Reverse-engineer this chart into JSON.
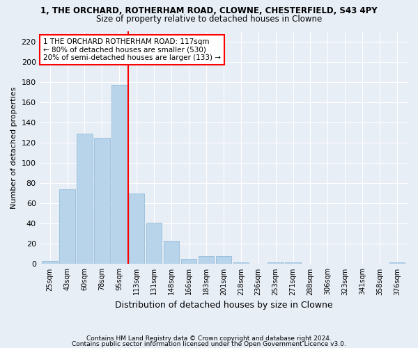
{
  "title_line1": "1, THE ORCHARD, ROTHERHAM ROAD, CLOWNE, CHESTERFIELD, S43 4PY",
  "title_line2": "Size of property relative to detached houses in Clowne",
  "xlabel": "Distribution of detached houses by size in Clowne",
  "ylabel": "Number of detached properties",
  "categories": [
    "25sqm",
    "43sqm",
    "60sqm",
    "78sqm",
    "95sqm",
    "113sqm",
    "131sqm",
    "148sqm",
    "166sqm",
    "183sqm",
    "201sqm",
    "218sqm",
    "236sqm",
    "253sqm",
    "271sqm",
    "288sqm",
    "306sqm",
    "323sqm",
    "341sqm",
    "358sqm",
    "376sqm"
  ],
  "values": [
    3,
    74,
    129,
    125,
    177,
    70,
    41,
    23,
    5,
    8,
    8,
    2,
    0,
    2,
    2,
    0,
    0,
    0,
    0,
    0,
    2
  ],
  "bar_color": "#b8d4ea",
  "bar_edgecolor": "#8ab4d4",
  "vline_x_index": 4.5,
  "annotation_text": "1 THE ORCHARD ROTHERHAM ROAD: 117sqm\n← 80% of detached houses are smaller (530)\n20% of semi-detached houses are larger (133) →",
  "annotation_box_color": "white",
  "annotation_box_edgecolor": "red",
  "vline_color": "red",
  "ylim": [
    0,
    230
  ],
  "yticks": [
    0,
    20,
    40,
    60,
    80,
    100,
    120,
    140,
    160,
    180,
    200,
    220
  ],
  "footer_line1": "Contains HM Land Registry data © Crown copyright and database right 2024.",
  "footer_line2": "Contains public sector information licensed under the Open Government Licence v3.0.",
  "bg_color": "#e8eef6",
  "plot_bg_color": "#e8eef6"
}
